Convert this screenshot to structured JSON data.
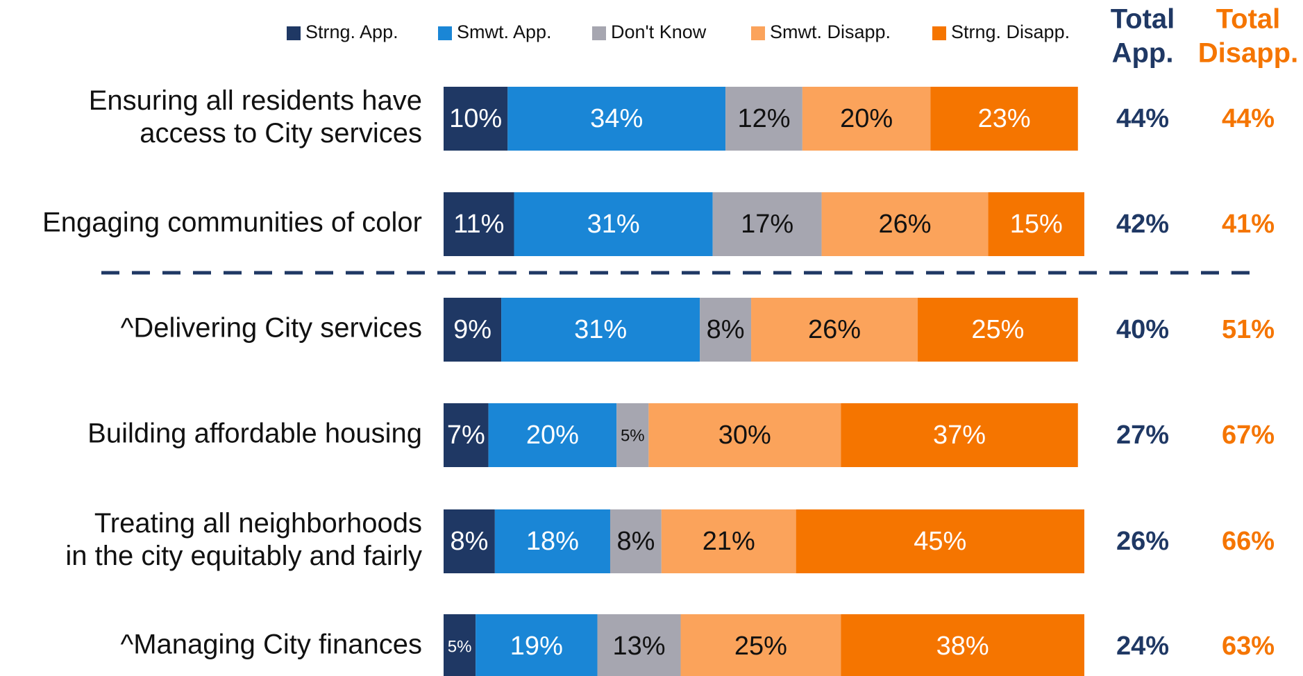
{
  "chart_data": {
    "type": "stacked-bar-horizontal",
    "categories": [
      [
        "Ensuring all residents have",
        "access to City services"
      ],
      [
        "Engaging communities of color"
      ],
      [
        "^Delivering City services"
      ],
      [
        "Building affordable housing"
      ],
      [
        "Treating all neighborhoods",
        "in the city equitably and fairly"
      ],
      [
        "^Managing City finances"
      ]
    ],
    "xlim": [
      0,
      100
    ],
    "series": [
      {
        "name": "Strng. App.",
        "color": "#1f3864",
        "label_color": "#ffffff",
        "values": [
          10,
          11,
          9,
          7,
          8,
          5
        ],
        "value_labels": [
          "10%",
          "11%",
          "9%",
          "7%",
          "8%",
          "5%"
        ]
      },
      {
        "name": "Smwt. App.",
        "color": "#1a86d6",
        "label_color": "#ffffff",
        "values": [
          34,
          31,
          31,
          20,
          18,
          19
        ],
        "value_labels": [
          "34%",
          "31%",
          "31%",
          "20%",
          "18%",
          "19%"
        ]
      },
      {
        "name": "Don't Know",
        "color": "#a6a6b0",
        "label_color": "#111111",
        "values": [
          12,
          17,
          8,
          5,
          8,
          13
        ],
        "value_labels": [
          "12%",
          "17%",
          "8%",
          "5%",
          "8%",
          "13%"
        ]
      },
      {
        "name": "Smwt. Disapp.",
        "color": "#fba35b",
        "label_color": "#111111",
        "values": [
          20,
          26,
          26,
          30,
          21,
          25
        ],
        "value_labels": [
          "20%",
          "26%",
          "26%",
          "30%",
          "21%",
          "25%"
        ]
      },
      {
        "name": "Strng. Disapp.",
        "color": "#f57500",
        "label_color": "#ffffff",
        "values": [
          23,
          15,
          25,
          37,
          45,
          38
        ],
        "value_labels": [
          "23%",
          "15%",
          "25%",
          "37%",
          "45%",
          "38%"
        ]
      }
    ],
    "totals": [
      {
        "name": [
          "Total",
          "App."
        ],
        "color": "#1f3864",
        "values": [
          44,
          42,
          40,
          27,
          26,
          24
        ],
        "value_labels": [
          "44%",
          "42%",
          "40%",
          "27%",
          "26%",
          "24%"
        ]
      },
      {
        "name": [
          "Total",
          "Disapp."
        ],
        "color": "#f57500",
        "values": [
          44,
          41,
          51,
          67,
          66,
          63
        ],
        "value_labels": [
          "44%",
          "41%",
          "51%",
          "67%",
          "66%",
          "63%"
        ]
      }
    ],
    "legend": "top"
  }
}
